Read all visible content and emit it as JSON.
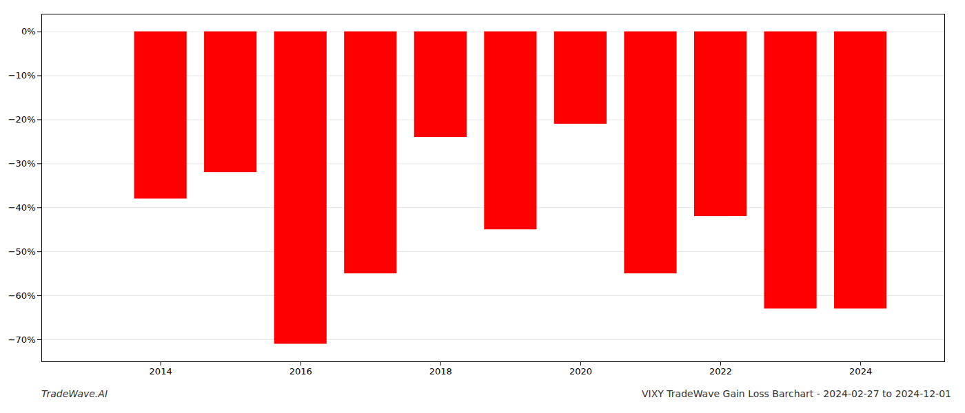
{
  "chart_data": {
    "type": "bar",
    "title": "VIXY TradeWave Gain Loss Barchart - 2024-02-27 to 2024-12-01",
    "annotations": [
      "TradeWave.AI"
    ],
    "x": [
      2013,
      2014,
      2015,
      2016,
      2017,
      2018,
      2019,
      2020,
      2021,
      2022,
      2023,
      2024
    ],
    "values": [
      0,
      -38,
      -32,
      -71,
      -55,
      -24,
      -45,
      -21,
      -55,
      -42,
      -63,
      -63
    ],
    "color": "#ff0000",
    "xlim": [
      2012.3,
      2025.2
    ],
    "xticks": [
      2014,
      2016,
      2018,
      2020,
      2022,
      2024
    ],
    "ylim": [
      -75,
      4
    ],
    "yticks": [
      {
        "value": 0,
        "label": "0%"
      },
      {
        "value": -10,
        "label": "−10%"
      },
      {
        "value": -20,
        "label": "−20%"
      },
      {
        "value": -30,
        "label": "−30%"
      },
      {
        "value": -40,
        "label": "−40%"
      },
      {
        "value": -50,
        "label": "−50%"
      },
      {
        "value": -60,
        "label": "−60%"
      },
      {
        "value": -70,
        "label": "−70%"
      }
    ],
    "grid": true
  }
}
